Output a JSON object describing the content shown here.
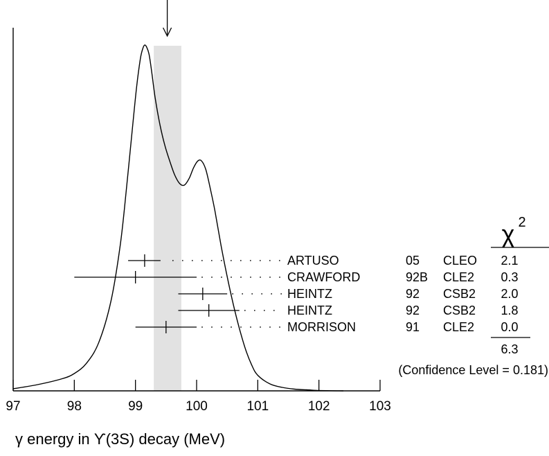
{
  "chart_data": {
    "type": "line",
    "title": "",
    "xlabel": "γ energy in ϒ(3S) decay (MeV)",
    "ylabel": "",
    "xlim": [
      97,
      103
    ],
    "x_ticks": [
      "97",
      "98",
      "99",
      "100",
      "101",
      "102",
      "103"
    ],
    "grid": false,
    "average_marker": {
      "x": 99.52
    },
    "average_band": {
      "x_min": 99.3,
      "x_max": 99.75,
      "color": "#e2e2e2"
    },
    "ideogram": {
      "x": [
        97.0,
        97.4,
        97.8,
        98.0,
        98.2,
        98.4,
        98.6,
        98.75,
        98.85,
        98.95,
        99.02,
        99.08,
        99.12,
        99.15,
        99.18,
        99.22,
        99.26,
        99.32,
        99.4,
        99.48,
        99.56,
        99.64,
        99.72,
        99.8,
        99.88,
        99.95,
        100.02,
        100.08,
        100.15,
        100.23,
        100.3,
        100.4,
        100.5,
        100.6,
        100.7,
        100.8,
        100.9,
        101.0,
        101.2,
        101.4,
        101.6,
        101.8,
        102.0,
        102.2,
        102.4
      ],
      "y": [
        0.006,
        0.018,
        0.035,
        0.05,
        0.08,
        0.14,
        0.26,
        0.42,
        0.58,
        0.76,
        0.88,
        0.96,
        0.99,
        1.0,
        0.995,
        0.975,
        0.93,
        0.85,
        0.77,
        0.71,
        0.665,
        0.625,
        0.6,
        0.595,
        0.615,
        0.645,
        0.665,
        0.665,
        0.64,
        0.58,
        0.52,
        0.42,
        0.33,
        0.25,
        0.18,
        0.12,
        0.075,
        0.045,
        0.02,
        0.01,
        0.005,
        0.003,
        0.001,
        0.0005,
        0.0
      ]
    },
    "measurements": [
      {
        "author": "ARTUSO",
        "year": "05",
        "experiment": "CLEO",
        "chi2": "2.1",
        "value": 99.15,
        "err_minus": 0.27,
        "err_plus": 0.26
      },
      {
        "author": "CRAWFORD",
        "year": "92B",
        "experiment": "CLE2",
        "chi2": "0.3",
        "value": 99.0,
        "err_minus": 1.0,
        "err_plus": 1.0
      },
      {
        "author": "HEINTZ",
        "year": "92",
        "experiment": "CSB2",
        "chi2": "2.0",
        "value": 100.1,
        "err_minus": 0.4,
        "err_plus": 0.4
      },
      {
        "author": "HEINTZ",
        "year": "92",
        "experiment": "CSB2",
        "chi2": "1.8",
        "value": 100.2,
        "err_minus": 0.5,
        "err_plus": 0.5
      },
      {
        "author": "MORRISON",
        "year": "91",
        "experiment": "CLE2",
        "chi2": "0.0",
        "value": 99.5,
        "err_minus": 0.5,
        "err_plus": 0.5
      }
    ],
    "chi2_header": "χ",
    "chi2_header_sup": "2",
    "chi2_total": "6.3",
    "confidence_level": "(Confidence Level = 0.181)"
  }
}
